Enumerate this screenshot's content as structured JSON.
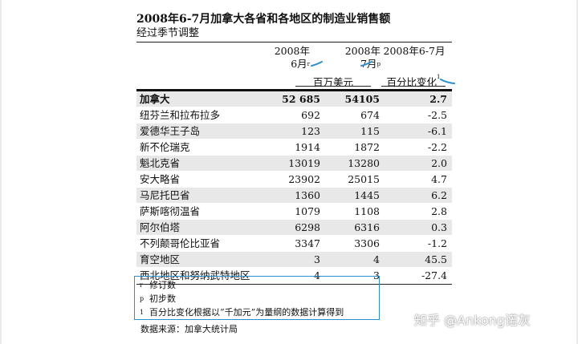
{
  "document": {
    "title": "2008年6-7月加拿大各省和各地区的制造业销售额",
    "subtitle": "经过季节调整"
  },
  "columns": {
    "col1": {
      "year": "2008年",
      "month": "6月",
      "mark": "r"
    },
    "col2": {
      "year": "2008年",
      "month": "7月",
      "mark": "p"
    },
    "col3": {
      "label": "2008年6-7月"
    },
    "unit_money": "百万美元",
    "unit_pct": "百分比变化",
    "unit_pct_mark": "1"
  },
  "rows": [
    {
      "name": "加拿大",
      "jun": "52 685",
      "jul": "54105",
      "change": "2.7"
    },
    {
      "name": "纽芬兰和拉布拉多",
      "jun": "692",
      "jul": "674",
      "change": "-2.5"
    },
    {
      "name": "爱德华王子岛",
      "jun": "123",
      "jul": "115",
      "change": "-6.1"
    },
    {
      "name": "新不伦瑞克",
      "jun": "1914",
      "jul": "1872",
      "change": "-2.2"
    },
    {
      "name": "魁北克省",
      "jun": "13019",
      "jul": "13280",
      "change": "2.0"
    },
    {
      "name": "安大略省",
      "jun": "23902",
      "jul": "25015",
      "change": "4.7"
    },
    {
      "name": "马尼托巴省",
      "jun": "1360",
      "jul": "1445",
      "change": "6.2"
    },
    {
      "name": "萨斯喀彻温省",
      "jun": "1079",
      "jul": "1108",
      "change": "2.8"
    },
    {
      "name": "阿尔伯塔",
      "jun": "6298",
      "jul": "6316",
      "change": "0.3"
    },
    {
      "name": "不列颠哥伦比亚省",
      "jun": "3347",
      "jul": "3306",
      "change": "-1.2"
    },
    {
      "name": "育空地区",
      "jun": "3",
      "jul": "4",
      "change": "45.5"
    },
    {
      "name": "西北地区和努纳武特地区",
      "jun": "4",
      "jul": "3",
      "change": "-27.4"
    }
  ],
  "notes": [
    {
      "mark": "r",
      "text": "修订数"
    },
    {
      "mark": "p",
      "text": "初步数"
    },
    {
      "mark": "1",
      "text": "百分比变化根据以“千加元”为量纲的数据计算得到"
    }
  ],
  "source": "数据来源：加拿大统计局",
  "watermark": "知乎 @Ankong诺灰",
  "colors": {
    "annotation_blue": "#2a8fd0",
    "row_shade": "#e8e8e8"
  }
}
